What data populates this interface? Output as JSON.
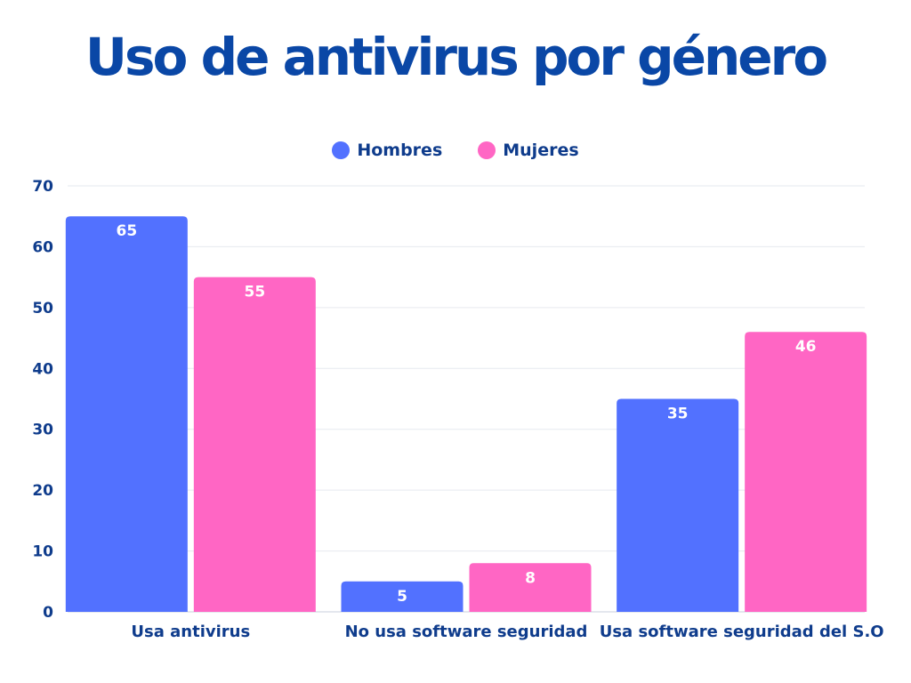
{
  "chart_data": {
    "type": "bar",
    "title": "Uso de antivirus por género",
    "categories": [
      "Usa antivirus",
      "No usa software seguridad",
      "Usa software seguridad del S.O"
    ],
    "series": [
      {
        "name": "Hombres",
        "values": [
          65,
          5,
          35
        ],
        "color": "#5271FF"
      },
      {
        "name": "Mujeres",
        "values": [
          55,
          8,
          46
        ],
        "color": "#FF66C4"
      }
    ],
    "ylim": [
      0,
      70
    ],
    "yticks": [
      0,
      10,
      20,
      30,
      40,
      50,
      60,
      70
    ],
    "grid": true,
    "legend": "top-center",
    "data_labels": true,
    "text_color": "#0F3C8C",
    "title_color": "#0A47A6"
  }
}
